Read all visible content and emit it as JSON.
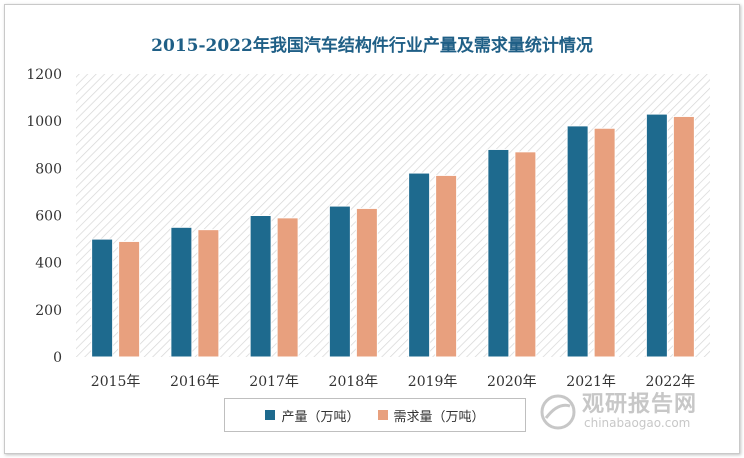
{
  "watermark": {
    "main": "观研报告网",
    "sub": "chinabaogao.com"
  },
  "colors": {
    "production": "#1e6a8e",
    "demand": "#e8a07e",
    "title": "#1f5f86"
  },
  "chart_data": {
    "type": "bar",
    "title": "2015-2022年我国汽车结构件行业产量及需求量统计情况",
    "categories": [
      "2015年",
      "2016年",
      "2017年",
      "2018年",
      "2019年",
      "2020年",
      "2021年",
      "2022年"
    ],
    "series": [
      {
        "name": "产量（万吨）",
        "values": [
          500,
          550,
          600,
          640,
          780,
          880,
          980,
          1030
        ]
      },
      {
        "name": "需求量（万吨）",
        "values": [
          490,
          540,
          590,
          630,
          770,
          870,
          970,
          1020
        ]
      }
    ],
    "ylim": [
      0,
      1200
    ],
    "yticks": [
      "0",
      "200",
      "400",
      "600",
      "800",
      "1000",
      "1200"
    ],
    "xlabel": "",
    "ylabel": "",
    "grid": false,
    "background": "diagonal-hatch",
    "legend": "bottom"
  }
}
